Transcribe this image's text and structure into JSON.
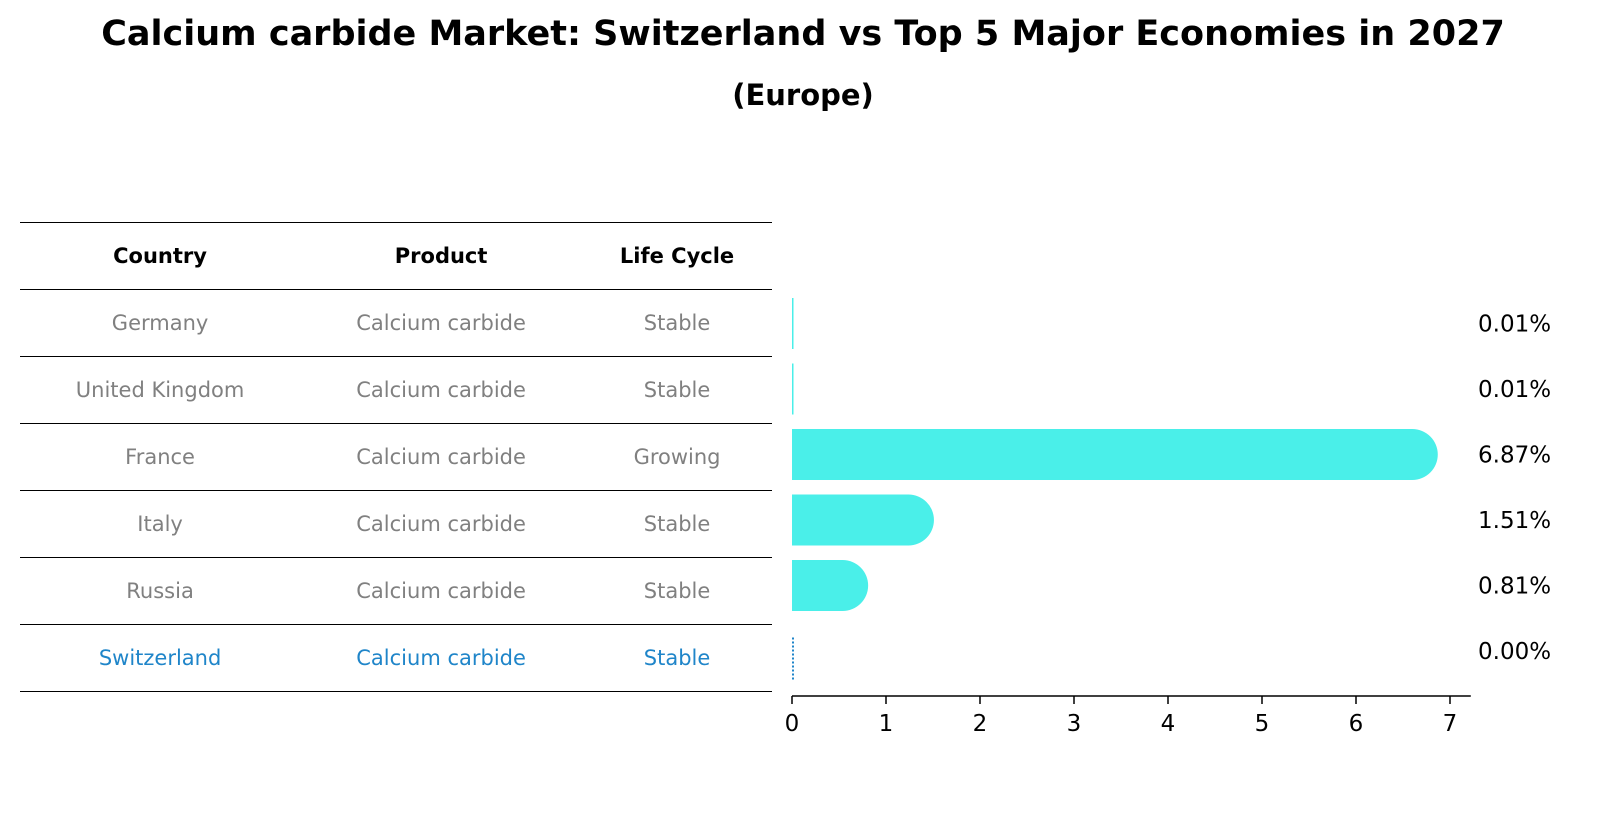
{
  "title": "Calcium carbide Market: Switzerland vs Top 5 Major Economies in 2027",
  "subtitle": "(Europe)",
  "table": {
    "headers": [
      "Country",
      "Product",
      "Life Cycle"
    ],
    "rows": [
      {
        "country": "Germany",
        "product": "Calcium carbide",
        "life_cycle": "Stable"
      },
      {
        "country": "United Kingdom",
        "product": "Calcium carbide",
        "life_cycle": "Stable"
      },
      {
        "country": "France",
        "product": "Calcium carbide",
        "life_cycle": "Growing"
      },
      {
        "country": "Italy",
        "product": "Calcium carbide",
        "life_cycle": "Stable"
      },
      {
        "country": "Russia",
        "product": "Calcium carbide",
        "life_cycle": "Stable"
      },
      {
        "country": "Switzerland",
        "product": "Calcium carbide",
        "life_cycle": "Stable"
      }
    ]
  },
  "chart_data": {
    "type": "bar",
    "orientation": "horizontal",
    "categories": [
      "Germany",
      "United Kingdom",
      "France",
      "Italy",
      "Russia",
      "Switzerland"
    ],
    "values": [
      0.01,
      0.01,
      6.87,
      1.51,
      0.81,
      0.0
    ],
    "value_labels": [
      "0.01%",
      "0.01%",
      "6.87%",
      "1.51%",
      "0.81%",
      "0.00%"
    ],
    "xticks": [
      "0",
      "1",
      "2",
      "3",
      "4",
      "5",
      "6",
      "7"
    ],
    "xlim": [
      0,
      7.2
    ],
    "grid": false,
    "colors": {
      "bar": "#4aefe9",
      "highlight": "#1f85c9",
      "text_muted": "#808080"
    }
  }
}
